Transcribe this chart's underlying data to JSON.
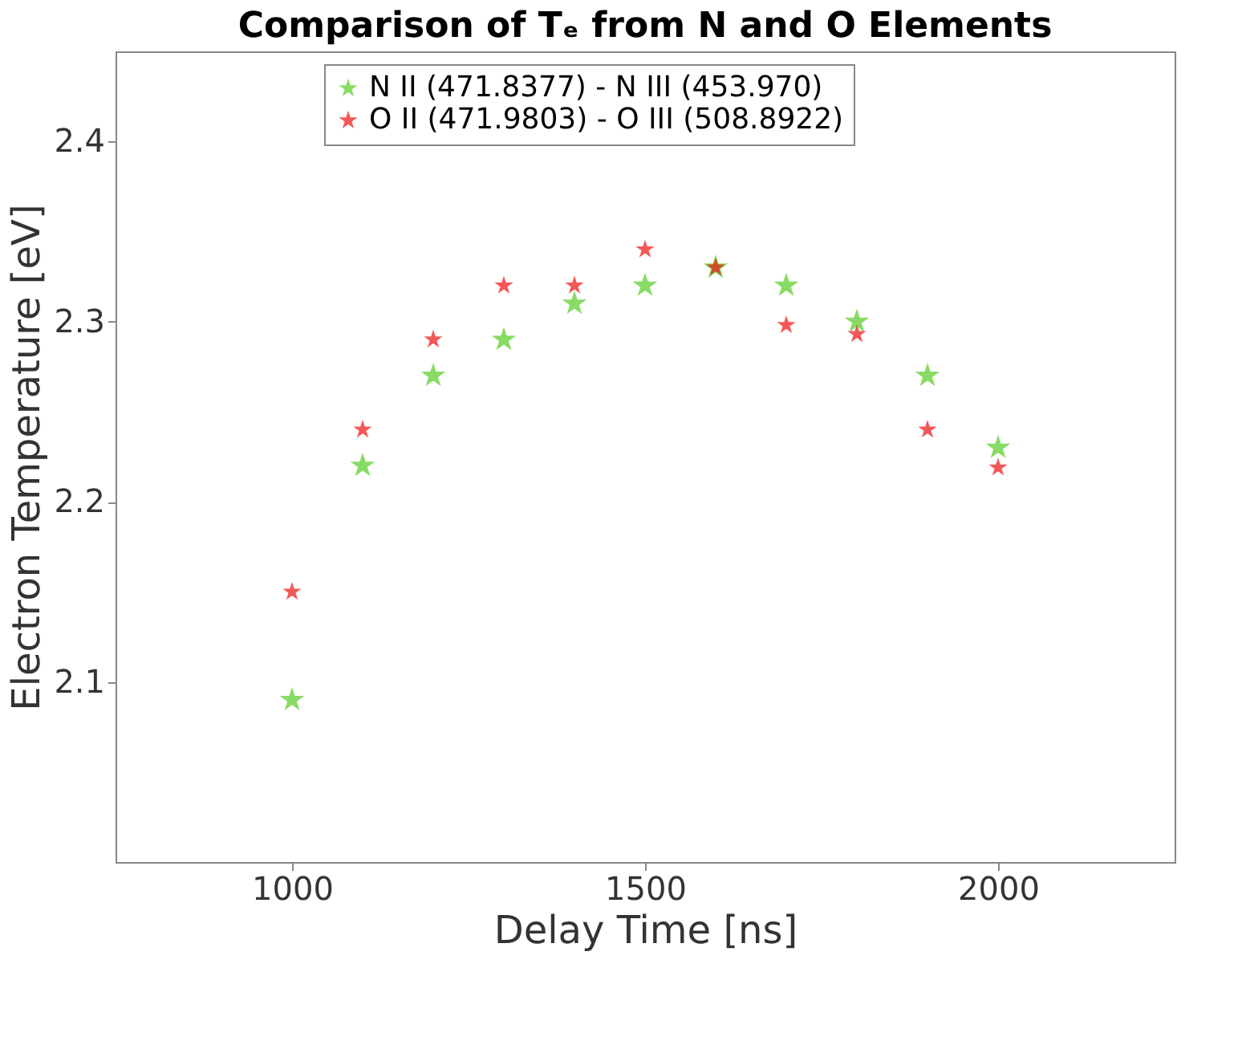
{
  "chart_data": {
    "type": "scatter",
    "title": "Comparison of Tₑ from N and O Elements",
    "xlabel": "Delay Time [ns]",
    "ylabel": "Electron Temperature [eV]",
    "x": [
      1000,
      1100,
      1200,
      1300,
      1400,
      1500,
      1600,
      1700,
      1800,
      1900,
      2000
    ],
    "series": [
      {
        "name": "N II (471.8377) - N III (453.970)",
        "color": "#55cc22",
        "values": [
          2.09,
          2.22,
          2.27,
          2.29,
          2.31,
          2.32,
          2.33,
          2.32,
          2.3,
          2.27,
          2.23
        ]
      },
      {
        "name": "O II (471.9803) - O III (508.8922)",
        "color": "#ee1111",
        "values": [
          2.15,
          2.24,
          2.29,
          2.32,
          2.32,
          2.34,
          2.33,
          2.298,
          2.293,
          2.24,
          2.219
        ]
      }
    ],
    "xlim": [
      750,
      2250
    ],
    "xticks": [
      1000,
      1500,
      2000
    ],
    "ylim": [
      2.0,
      2.45
    ],
    "yticks": [
      2.1,
      2.2,
      2.3,
      2.4
    ],
    "grid": false,
    "legend": "top",
    "marker": "star"
  }
}
